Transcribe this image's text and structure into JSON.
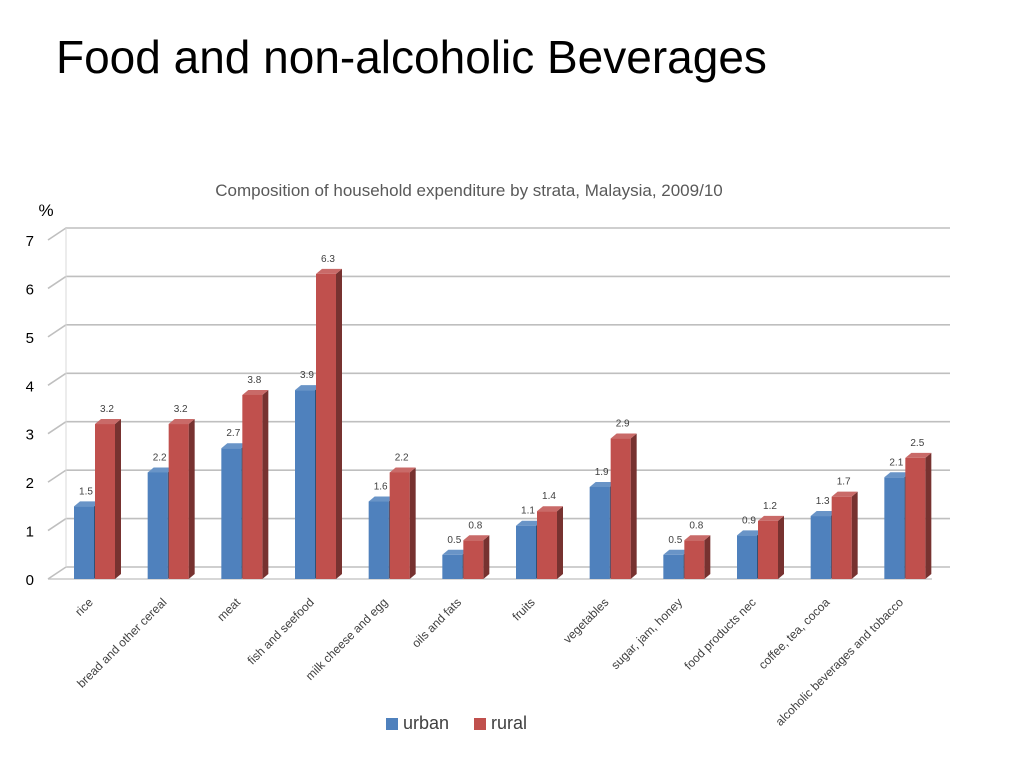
{
  "slide": {
    "title": "Food and non-alcoholic Beverages"
  },
  "chart_data": {
    "type": "bar",
    "title": "Composition of household expenditure by strata, Malaysia, 2009/10",
    "ylabel": "%",
    "xlabel": "",
    "ylim": [
      0,
      7
    ],
    "yticks": [
      0,
      1,
      2,
      3,
      4,
      5,
      6,
      7
    ],
    "grid": true,
    "legend_position": "bottom",
    "three_d": true,
    "categories": [
      "rice",
      "bread and other cereal",
      "meat",
      "fish and seefood",
      "milk cheese and egg",
      "oils and fats",
      "fruits",
      "vegetables",
      "sugar, jam, honey",
      "food products nec",
      "coffee, tea, cocoa",
      "alcoholic beverages and tobacco"
    ],
    "series": [
      {
        "name": "urban",
        "color": "#4F81BD",
        "values": [
          1.5,
          2.2,
          2.7,
          3.9,
          1.6,
          0.5,
          1.1,
          1.9,
          0.5,
          0.9,
          1.3,
          2.1
        ]
      },
      {
        "name": "rural",
        "color": "#C0504D",
        "values": [
          3.2,
          3.2,
          3.8,
          6.3,
          2.2,
          0.8,
          1.4,
          2.9,
          0.8,
          1.2,
          1.7,
          2.5
        ]
      }
    ]
  }
}
